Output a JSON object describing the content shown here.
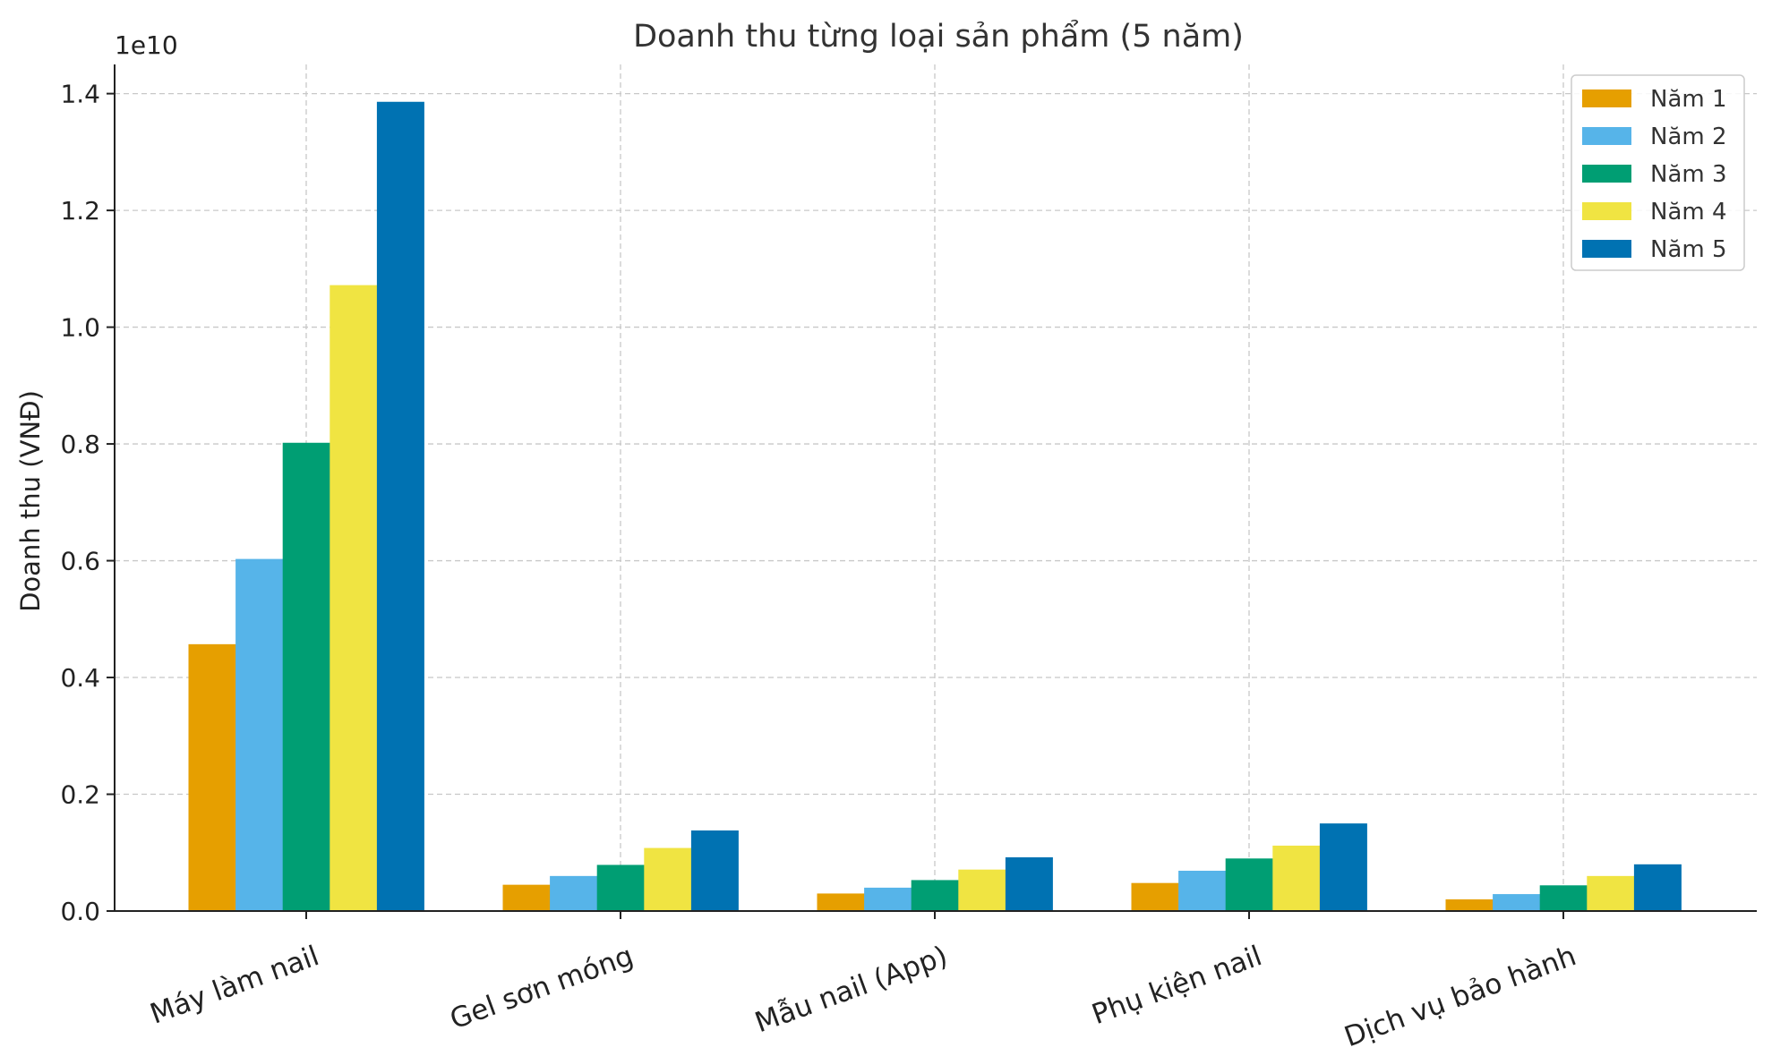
{
  "chart_data": {
    "type": "bar",
    "title": "Doanh thu từng loại sản phẩm (5 năm)",
    "xlabel": "",
    "ylabel": "Doanh thu (VNĐ)",
    "y_offset_label": "1e10",
    "y_scale": 10000000000,
    "ylim": [
      0,
      1.45
    ],
    "yticks": [
      0.0,
      0.2,
      0.4,
      0.6,
      0.8,
      1.0,
      1.2,
      1.4
    ],
    "ytick_labels": [
      "0.0",
      "0.2",
      "0.4",
      "0.6",
      "0.8",
      "1.0",
      "1.2",
      "1.4"
    ],
    "grid": true,
    "legend_position": "top-right",
    "categories": [
      "Máy làm nail",
      "Gel sơn móng",
      "Mẫu nail (App)",
      "Phụ kiện nail",
      "Dịch vụ bảo hành"
    ],
    "series": [
      {
        "name": "Năm 1",
        "color": "#E69F00",
        "values": [
          4570000000,
          450000000,
          300000000,
          480000000,
          200000000
        ]
      },
      {
        "name": "Năm 2",
        "color": "#56B4E9",
        "values": [
          6030000000,
          600000000,
          400000000,
          690000000,
          290000000
        ]
      },
      {
        "name": "Năm 3",
        "color": "#009E73",
        "values": [
          8020000000,
          790000000,
          530000000,
          900000000,
          440000000
        ]
      },
      {
        "name": "Năm 4",
        "color": "#F0E442",
        "values": [
          10720000000,
          1080000000,
          710000000,
          1120000000,
          600000000
        ]
      },
      {
        "name": "Năm 5",
        "color": "#0072B2",
        "values": [
          13860000000,
          1380000000,
          920000000,
          1500000000,
          800000000
        ]
      }
    ]
  }
}
